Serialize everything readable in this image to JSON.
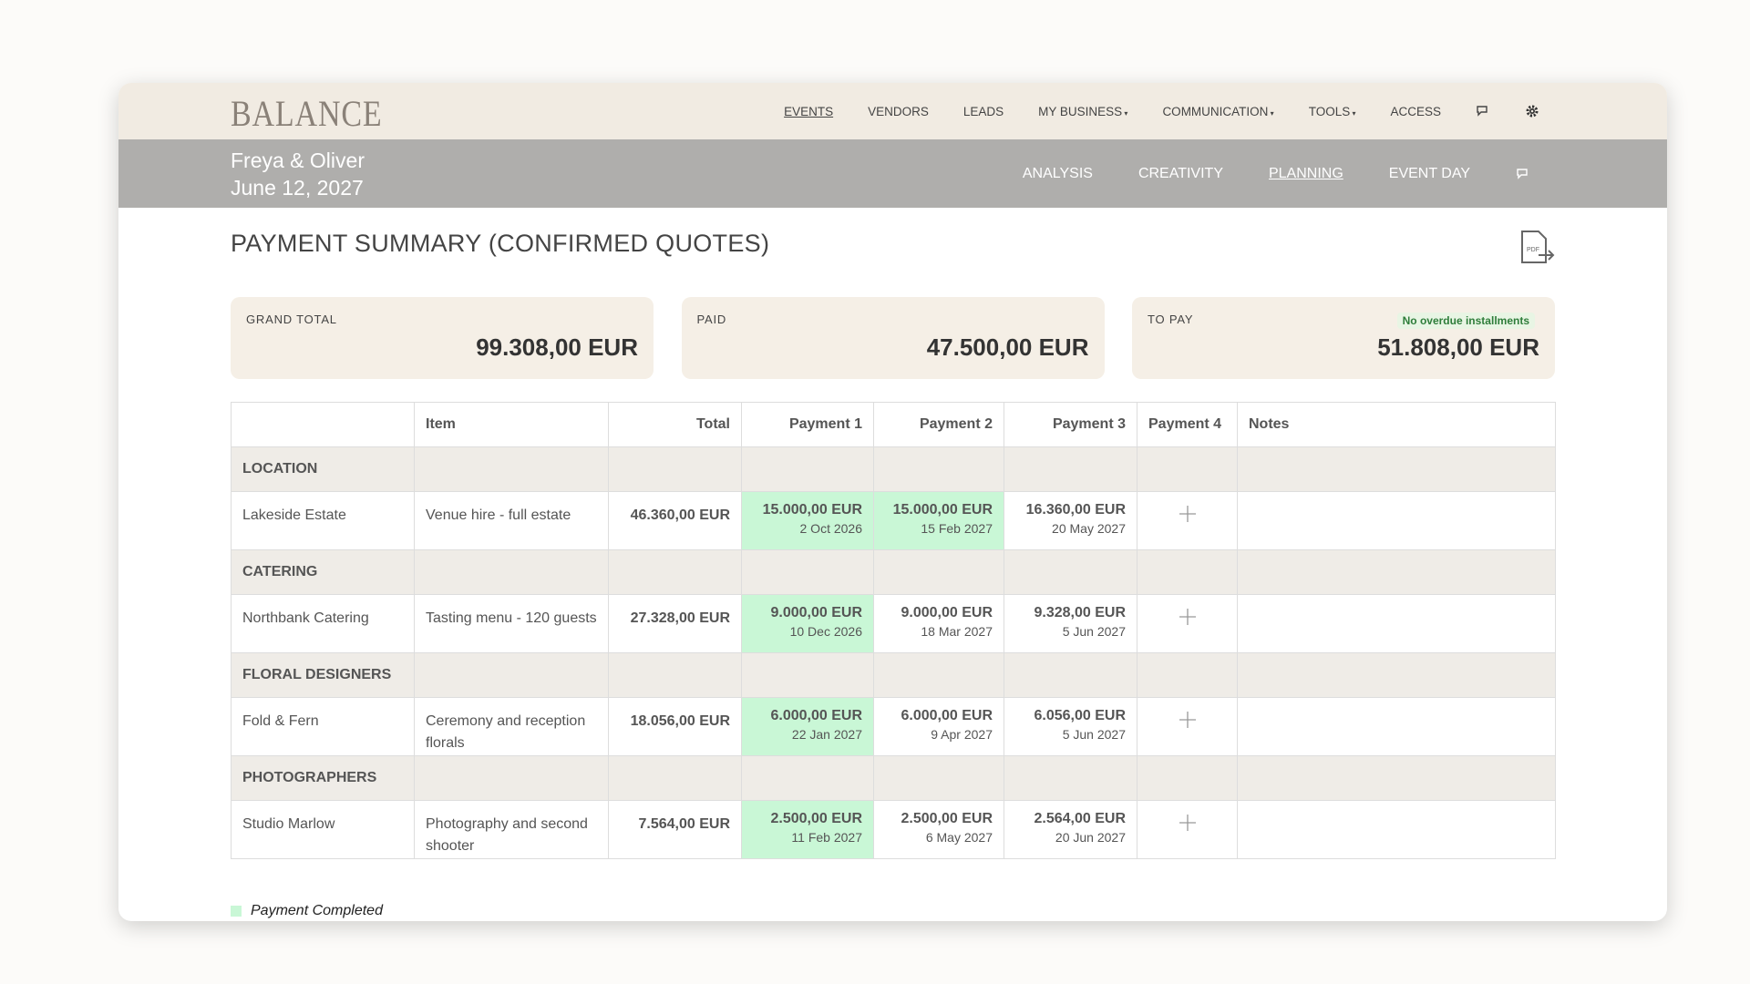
{
  "brand": "BALANCE",
  "nav": [
    "EVENTS",
    "VENDORS",
    "LEADS",
    "MY BUSINESS",
    "COMMUNICATION",
    "TOOLS",
    "ACCESS"
  ],
  "event": {
    "name": "Freya & Oliver",
    "date": "June 12, 2027"
  },
  "subnav": [
    "ANALYSIS",
    "CREATIVITY",
    "PLANNING",
    "EVENT DAY"
  ],
  "title": "PAYMENT SUMMARY (CONFIRMED QUOTES)",
  "summary": [
    {
      "label": "GRAND TOTAL",
      "value": "99.308,00 EUR"
    },
    {
      "label": "PAID",
      "value": "47.500,00 EUR"
    },
    {
      "label": "TO PAY",
      "value": "51.808,00 EUR",
      "badge": "No overdue installments"
    }
  ],
  "table": {
    "headers": [
      "Item",
      "Total",
      "Payment 1",
      "Payment 2",
      "Payment 3",
      "Payment 4",
      "Notes"
    ],
    "groups": [
      {
        "name": "LOCATION",
        "rows": [
          {
            "vendor": "Lakeside Estate",
            "item": "Venue hire - full estate",
            "total": "46.360,00 EUR",
            "payments": [
              {
                "amount": "15.000,00 EUR",
                "date": "2 Oct 2026",
                "completed": true
              },
              {
                "amount": "15.000,00 EUR",
                "date": "15 Feb 2027",
                "completed": true
              },
              {
                "amount": "16.360,00 EUR",
                "date": "20 May 2027",
                "completed": false
              }
            ]
          }
        ]
      },
      {
        "name": "CATERING",
        "rows": [
          {
            "vendor": "Northbank Catering",
            "item": "Tasting menu - 120 guests",
            "total": "27.328,00 EUR",
            "payments": [
              {
                "amount": "9.000,00 EUR",
                "date": "10 Dec 2026",
                "completed": true
              },
              {
                "amount": "9.000,00 EUR",
                "date": "18 Mar 2027",
                "completed": false
              },
              {
                "amount": "9.328,00 EUR",
                "date": "5 Jun 2027",
                "completed": false
              }
            ]
          }
        ]
      },
      {
        "name": "FLORAL DESIGNERS",
        "rows": [
          {
            "vendor": "Fold & Fern",
            "item": "Ceremony and reception florals",
            "total": "18.056,00 EUR",
            "payments": [
              {
                "amount": "6.000,00 EUR",
                "date": "22 Jan 2027",
                "completed": true
              },
              {
                "amount": "6.000,00 EUR",
                "date": "9 Apr 2027",
                "completed": false
              },
              {
                "amount": "6.056,00 EUR",
                "date": "5 Jun 2027",
                "completed": false
              }
            ]
          }
        ]
      },
      {
        "name": "PHOTOGRAPHERS",
        "rows": [
          {
            "vendor": "Studio Marlow",
            "item": "Photography and second shooter",
            "total": "7.564,00 EUR",
            "payments": [
              {
                "amount": "2.500,00 EUR",
                "date": "11 Feb 2027",
                "completed": true
              },
              {
                "amount": "2.500,00 EUR",
                "date": "6 May 2027",
                "completed": false
              },
              {
                "amount": "2.564,00 EUR",
                "date": "20 Jun 2027",
                "completed": false
              }
            ]
          }
        ]
      }
    ]
  },
  "legend": "Payment Completed"
}
